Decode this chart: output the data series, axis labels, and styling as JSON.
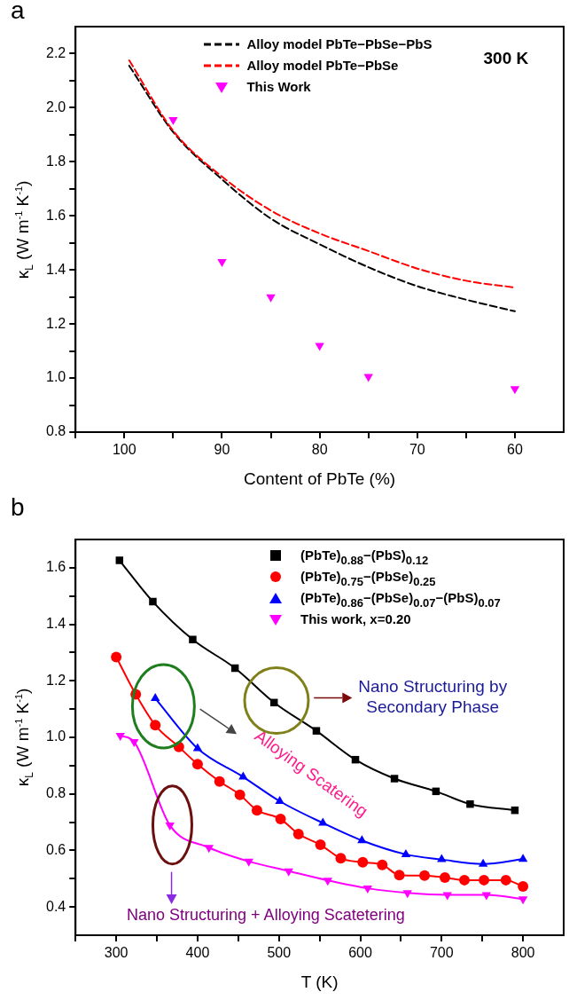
{
  "chart_data": [
    {
      "type": "line",
      "title": "a",
      "xlabel": "Content of PbTe (%)",
      "ylabel": "κ$_{L}$ (W m$^{-1}$ K$^{-1}$)",
      "xlim": [
        105,
        55
      ],
      "xticks": [
        {
          "value": 105,
          "label": null
        },
        100,
        {
          "value": 95,
          "label": null
        },
        90,
        {
          "value": 85,
          "label": null
        },
        80,
        {
          "value": 75,
          "label": null
        },
        70,
        {
          "value": 65,
          "label": null
        },
        60
      ],
      "ylim": [
        0.8,
        2.3
      ],
      "yticks": [
        0.8,
        {
          "value": 0.9,
          "label": null
        },
        {
          "value": 1,
          "label": "1.0"
        },
        {
          "value": 1.1,
          "label": null
        },
        1.2,
        {
          "value": 1.3,
          "label": null
        },
        1.4,
        {
          "value": 1.5,
          "label": null
        },
        1.6,
        {
          "value": 1.7,
          "label": null
        },
        1.8,
        {
          "value": 1.9,
          "label": null
        },
        {
          "value": 2,
          "label": "2.0"
        },
        {
          "value": 2.1,
          "label": null
        },
        2.2
      ],
      "grid": false,
      "legend": "top right",
      "series": [
        {
          "name": "Alloy model PbTe−PbSe−PbS",
          "type": "line",
          "color": "#000000",
          "marker": "none",
          "line_style": "dashed",
          "x": [
            99.5,
            95,
            90,
            85,
            80,
            75,
            70,
            65,
            60
          ],
          "values": [
            2.155,
            1.91,
            1.735,
            1.59,
            1.495,
            1.41,
            1.34,
            1.29,
            1.247
          ]
        },
        {
          "name": "Alloy model PbTe−PbSe",
          "type": "line",
          "color": "#ff0000",
          "marker": "none",
          "line_style": "dashed",
          "x": [
            99.5,
            95,
            90,
            85,
            80,
            75,
            70,
            65,
            60
          ],
          "values": [
            2.175,
            1.915,
            1.745,
            1.62,
            1.535,
            1.47,
            1.405,
            1.36,
            1.335
          ]
        },
        {
          "name": "This Work",
          "type": "scatter",
          "color": "#ff00ff",
          "marker": "triangle-down",
          "x": [
            95,
            90,
            85,
            80,
            75,
            60
          ],
          "values": [
            1.955,
            1.43,
            1.3,
            1.12,
            1.005,
            0.96
          ]
        }
      ],
      "annotations": [
        "300 K"
      ]
    },
    {
      "type": "line",
      "title": "b",
      "xlabel": "T (K)",
      "ylabel": "κ$_{L}$ (W m$^{-1}$ K$^{-1}$)",
      "xlim": [
        250,
        850
      ],
      "xticks": [
        {
          "value": 250,
          "label": null
        },
        300,
        {
          "value": 350,
          "label": null
        },
        400,
        {
          "value": 450,
          "label": null
        },
        500,
        {
          "value": 550,
          "label": null
        },
        600,
        {
          "value": 650,
          "label": null
        },
        700,
        {
          "value": 750,
          "label": null
        },
        800
      ],
      "ylim": [
        0.3,
        1.7
      ],
      "yticks": [
        0.4,
        {
          "value": 0.5,
          "label": null
        },
        0.6,
        {
          "value": 0.7,
          "label": null
        },
        0.8,
        {
          "value": 0.9,
          "label": null
        },
        {
          "value": 1,
          "label": "1.0"
        },
        {
          "value": 1.1,
          "label": null
        },
        1.2,
        {
          "value": 1.3,
          "label": null
        },
        1.4,
        {
          "value": 1.5,
          "label": null
        },
        1.6
      ],
      "grid": false,
      "legend": "top right",
      "series": [
        {
          "name": "(PbTe)$_{0.88}$−(PbS)$_{0.12}$",
          "type": "line",
          "color": "#000000",
          "marker": "square",
          "line_style": "solid",
          "x": [
            304,
            345,
            394,
            446,
            494,
            546,
            594,
            642,
            693,
            735,
            790
          ],
          "values": [
            1.626,
            1.48,
            1.346,
            1.245,
            1.123,
            1.023,
            0.921,
            0.854,
            0.809,
            0.764,
            0.742
          ]
        },
        {
          "name": "(PbTe)$_{0.75}$−(PbSe)$_{0.25}$",
          "type": "line",
          "color": "#ff0000",
          "marker": "circle",
          "line_style": "solid",
          "x": [
            300,
            324,
            348,
            377,
            400,
            427,
            452,
            473,
            502,
            524,
            551,
            576,
            603,
            627,
            648,
            679,
            704,
            728,
            752,
            779,
            800
          ],
          "values": [
            1.284,
            1.152,
            1.043,
            0.966,
            0.905,
            0.844,
            0.797,
            0.742,
            0.711,
            0.658,
            0.62,
            0.572,
            0.558,
            0.549,
            0.513,
            0.511,
            0.504,
            0.495,
            0.495,
            0.495,
            0.473
          ]
        },
        {
          "name": "(PbTe)$_{0.86}$−(PbSe)$_{0.07}$−(PbS)$_{0.07}$",
          "type": "line",
          "color": "#0000ff",
          "marker": "triangle",
          "line_style": "solid",
          "x": [
            348,
            400,
            456,
            501,
            554,
            602,
            656,
            700,
            751,
            800
          ],
          "values": [
            1.138,
            0.961,
            0.86,
            0.774,
            0.697,
            0.635,
            0.586,
            0.568,
            0.552,
            0.569
          ]
        },
        {
          "name": "This work, x=0.20",
          "type": "line",
          "color": "#ff00ff",
          "marker": "triangle-down",
          "line_style": "solid",
          "x": [
            305,
            322,
            366,
            414,
            463,
            512,
            560,
            609,
            658,
            707,
            755,
            800
          ],
          "values": [
            1.006,
            0.984,
            0.689,
            0.61,
            0.561,
            0.527,
            0.494,
            0.466,
            0.45,
            0.443,
            0.443,
            0.428
          ]
        }
      ],
      "annotations": [
        "Nano Structuring by Secondary Phase",
        "Alloying Scatering",
        "Nano Structuring + Alloying Scatetering"
      ]
    }
  ]
}
